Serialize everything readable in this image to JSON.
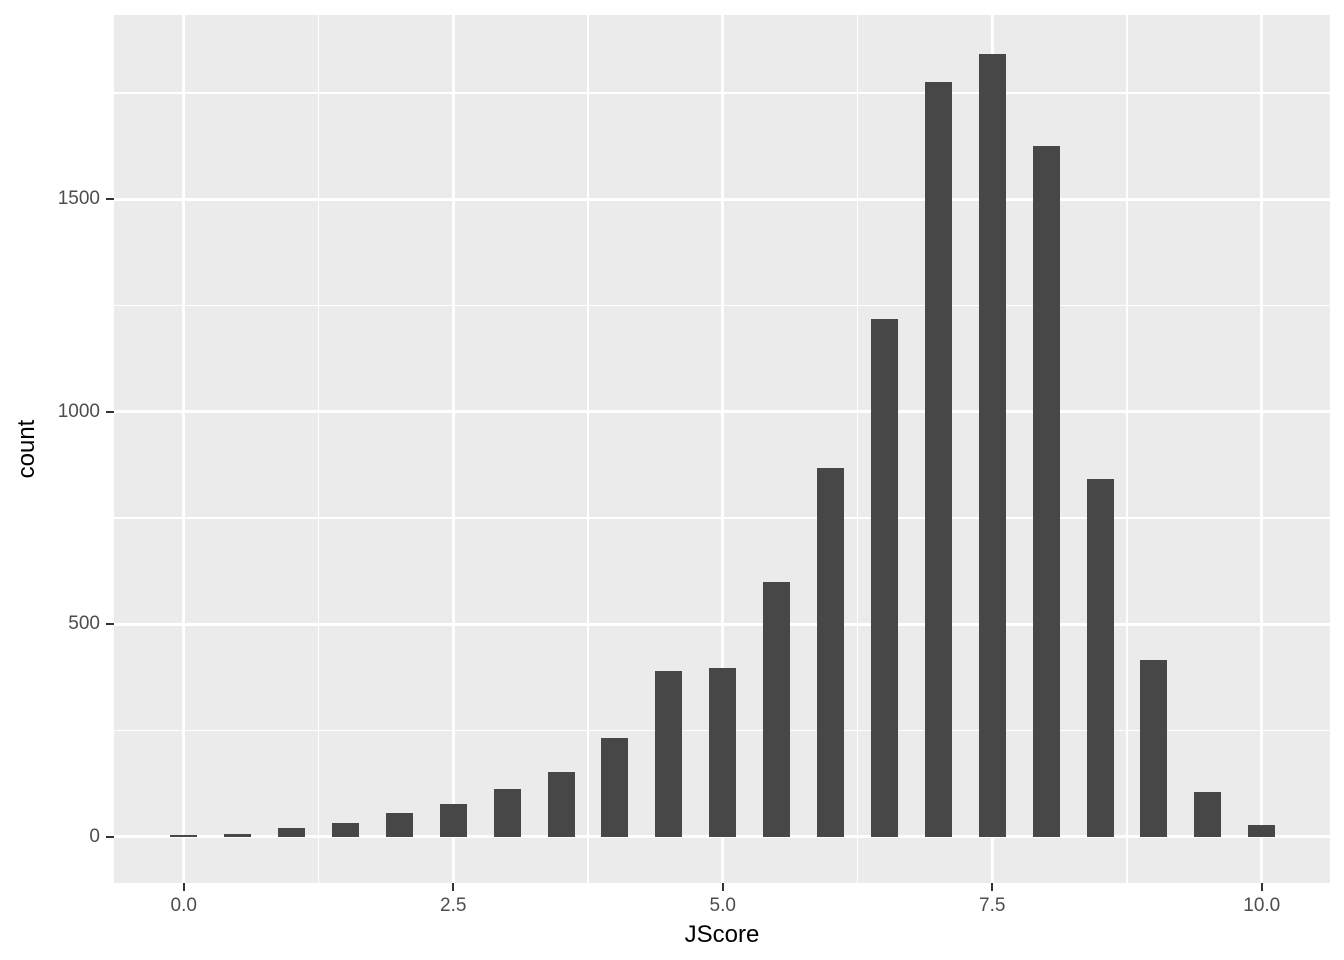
{
  "chart_data": {
    "type": "bar",
    "subtype": "histogram",
    "title": "",
    "xlabel": "JScore",
    "ylabel": "count",
    "categories": [
      0,
      0.5,
      1,
      1.5,
      2,
      2.5,
      3,
      3.5,
      4,
      4.5,
      5,
      5.5,
      6,
      6.5,
      7,
      7.5,
      8,
      8.5,
      9,
      9.5,
      10
    ],
    "values": [
      4,
      6,
      20,
      31,
      55,
      77,
      113,
      152,
      232,
      389,
      396,
      600,
      867,
      1218,
      1776,
      1842,
      1624,
      842,
      416,
      106,
      28
    ],
    "bar_width_units": 0.25,
    "x_axis": {
      "ticks": [
        0,
        2.5,
        5,
        7.5,
        10
      ],
      "tick_labels": [
        "0.0",
        "2.5",
        "5.0",
        "7.5",
        "10.0"
      ],
      "minor_ticks": [
        1.25,
        3.75,
        6.25,
        8.75
      ],
      "range": [
        -0.647,
        10.633
      ]
    },
    "y_axis": {
      "ticks": [
        0,
        500,
        1000,
        1500
      ],
      "tick_labels": [
        "0",
        "500",
        "1000",
        "1500"
      ],
      "minor_ticks": [
        250,
        750,
        1250,
        1750
      ],
      "range": [
        -109,
        1933
      ]
    },
    "legend": "none",
    "grid": true,
    "style": {
      "bar_color": "#474747",
      "panel_bg": "#EBEBEB",
      "grid_color": "#FFFFFF",
      "tick_label_color": "#4D4D4D",
      "axis_title_color": "#000000",
      "tick_mark_color": "#333333",
      "page_bg": "#FFFFFF"
    }
  }
}
